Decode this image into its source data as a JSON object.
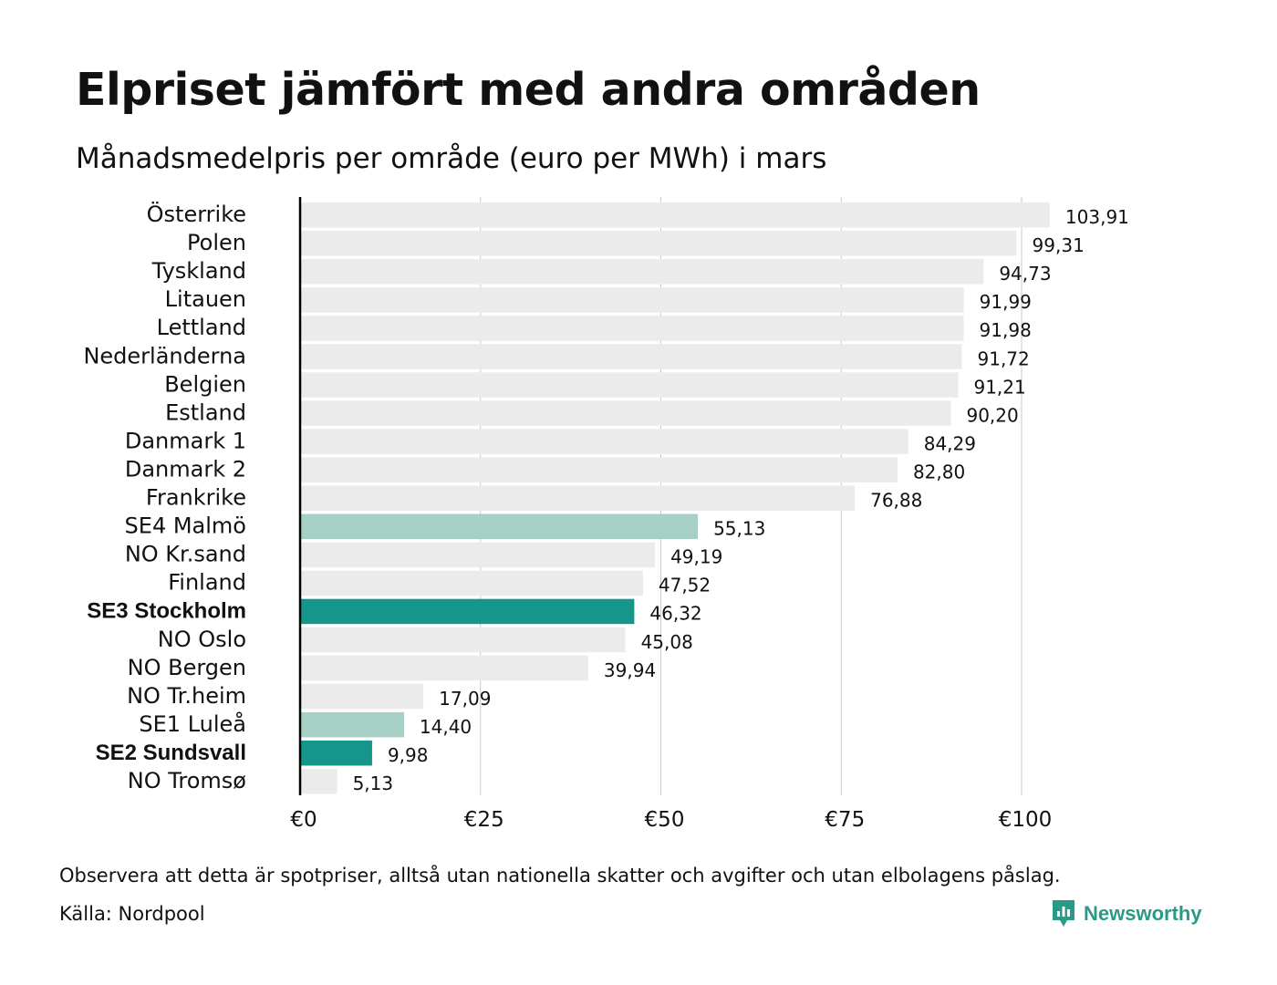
{
  "header": {
    "title": "Elpriset jämfört med andra områden",
    "subtitle": "Månadsmedelpris per område (euro per MWh) i mars"
  },
  "footer": {
    "note": "Observera att detta är spotpriser, alltså utan nationella skatter och avgifter och utan elbolagens påslag.",
    "source": "Källa: Nordpool",
    "brand": "Newsworthy"
  },
  "colors": {
    "default_bar": "#ebebeb",
    "highlight_light": "#a6cfc6",
    "highlight_dark": "#16968a",
    "gridline": "#c8cbd6",
    "axis": "#000000",
    "brand": "#2a9a88"
  },
  "chart_data": {
    "type": "bar",
    "orientation": "horizontal",
    "title": "Elpriset jämfört med andra områden",
    "subtitle": "Månadsmedelpris per område (euro per MWh) i mars",
    "xlim": [
      0,
      106
    ],
    "x_ticks": [
      {
        "value": 0,
        "label": "€0"
      },
      {
        "value": 25,
        "label": "€25"
      },
      {
        "value": 50,
        "label": "€50"
      },
      {
        "value": 75,
        "label": "€75"
      },
      {
        "value": 100,
        "label": "€100"
      }
    ],
    "grid": true,
    "bars": [
      {
        "category": "Österrike",
        "value": 103.91,
        "label": "103,91",
        "highlight": "none",
        "bold": false
      },
      {
        "category": "Polen",
        "value": 99.31,
        "label": "99,31",
        "highlight": "none",
        "bold": false
      },
      {
        "category": "Tyskland",
        "value": 94.73,
        "label": "94,73",
        "highlight": "none",
        "bold": false
      },
      {
        "category": "Litauen",
        "value": 91.99,
        "label": "91,99",
        "highlight": "none",
        "bold": false
      },
      {
        "category": "Lettland",
        "value": 91.98,
        "label": "91,98",
        "highlight": "none",
        "bold": false
      },
      {
        "category": "Nederländerna",
        "value": 91.72,
        "label": "91,72",
        "highlight": "none",
        "bold": false
      },
      {
        "category": "Belgien",
        "value": 91.21,
        "label": "91,21",
        "highlight": "none",
        "bold": false
      },
      {
        "category": "Estland",
        "value": 90.2,
        "label": "90,20",
        "highlight": "none",
        "bold": false
      },
      {
        "category": "Danmark 1",
        "value": 84.29,
        "label": "84,29",
        "highlight": "none",
        "bold": false
      },
      {
        "category": "Danmark 2",
        "value": 82.8,
        "label": "82,80",
        "highlight": "none",
        "bold": false
      },
      {
        "category": "Frankrike",
        "value": 76.88,
        "label": "76,88",
        "highlight": "none",
        "bold": false
      },
      {
        "category": "SE4 Malmö",
        "value": 55.13,
        "label": "55,13",
        "highlight": "light",
        "bold": false
      },
      {
        "category": "NO Kr.sand",
        "value": 49.19,
        "label": "49,19",
        "highlight": "none",
        "bold": false
      },
      {
        "category": "Finland",
        "value": 47.52,
        "label": "47,52",
        "highlight": "none",
        "bold": false
      },
      {
        "category": "SE3 Stockholm",
        "value": 46.32,
        "label": "46,32",
        "highlight": "dark",
        "bold": true
      },
      {
        "category": "NO Oslo",
        "value": 45.08,
        "label": "45,08",
        "highlight": "none",
        "bold": false
      },
      {
        "category": "NO Bergen",
        "value": 39.94,
        "label": "39,94",
        "highlight": "none",
        "bold": false
      },
      {
        "category": "NO Tr.heim",
        "value": 17.09,
        "label": "17,09",
        "highlight": "none",
        "bold": false
      },
      {
        "category": "SE1 Luleå",
        "value": 14.4,
        "label": "14,40",
        "highlight": "light",
        "bold": false
      },
      {
        "category": "SE2 Sundsvall",
        "value": 9.98,
        "label": "9,98",
        "highlight": "dark",
        "bold": true
      },
      {
        "category": "NO Tromsø",
        "value": 5.13,
        "label": "5,13",
        "highlight": "none",
        "bold": false
      }
    ]
  }
}
